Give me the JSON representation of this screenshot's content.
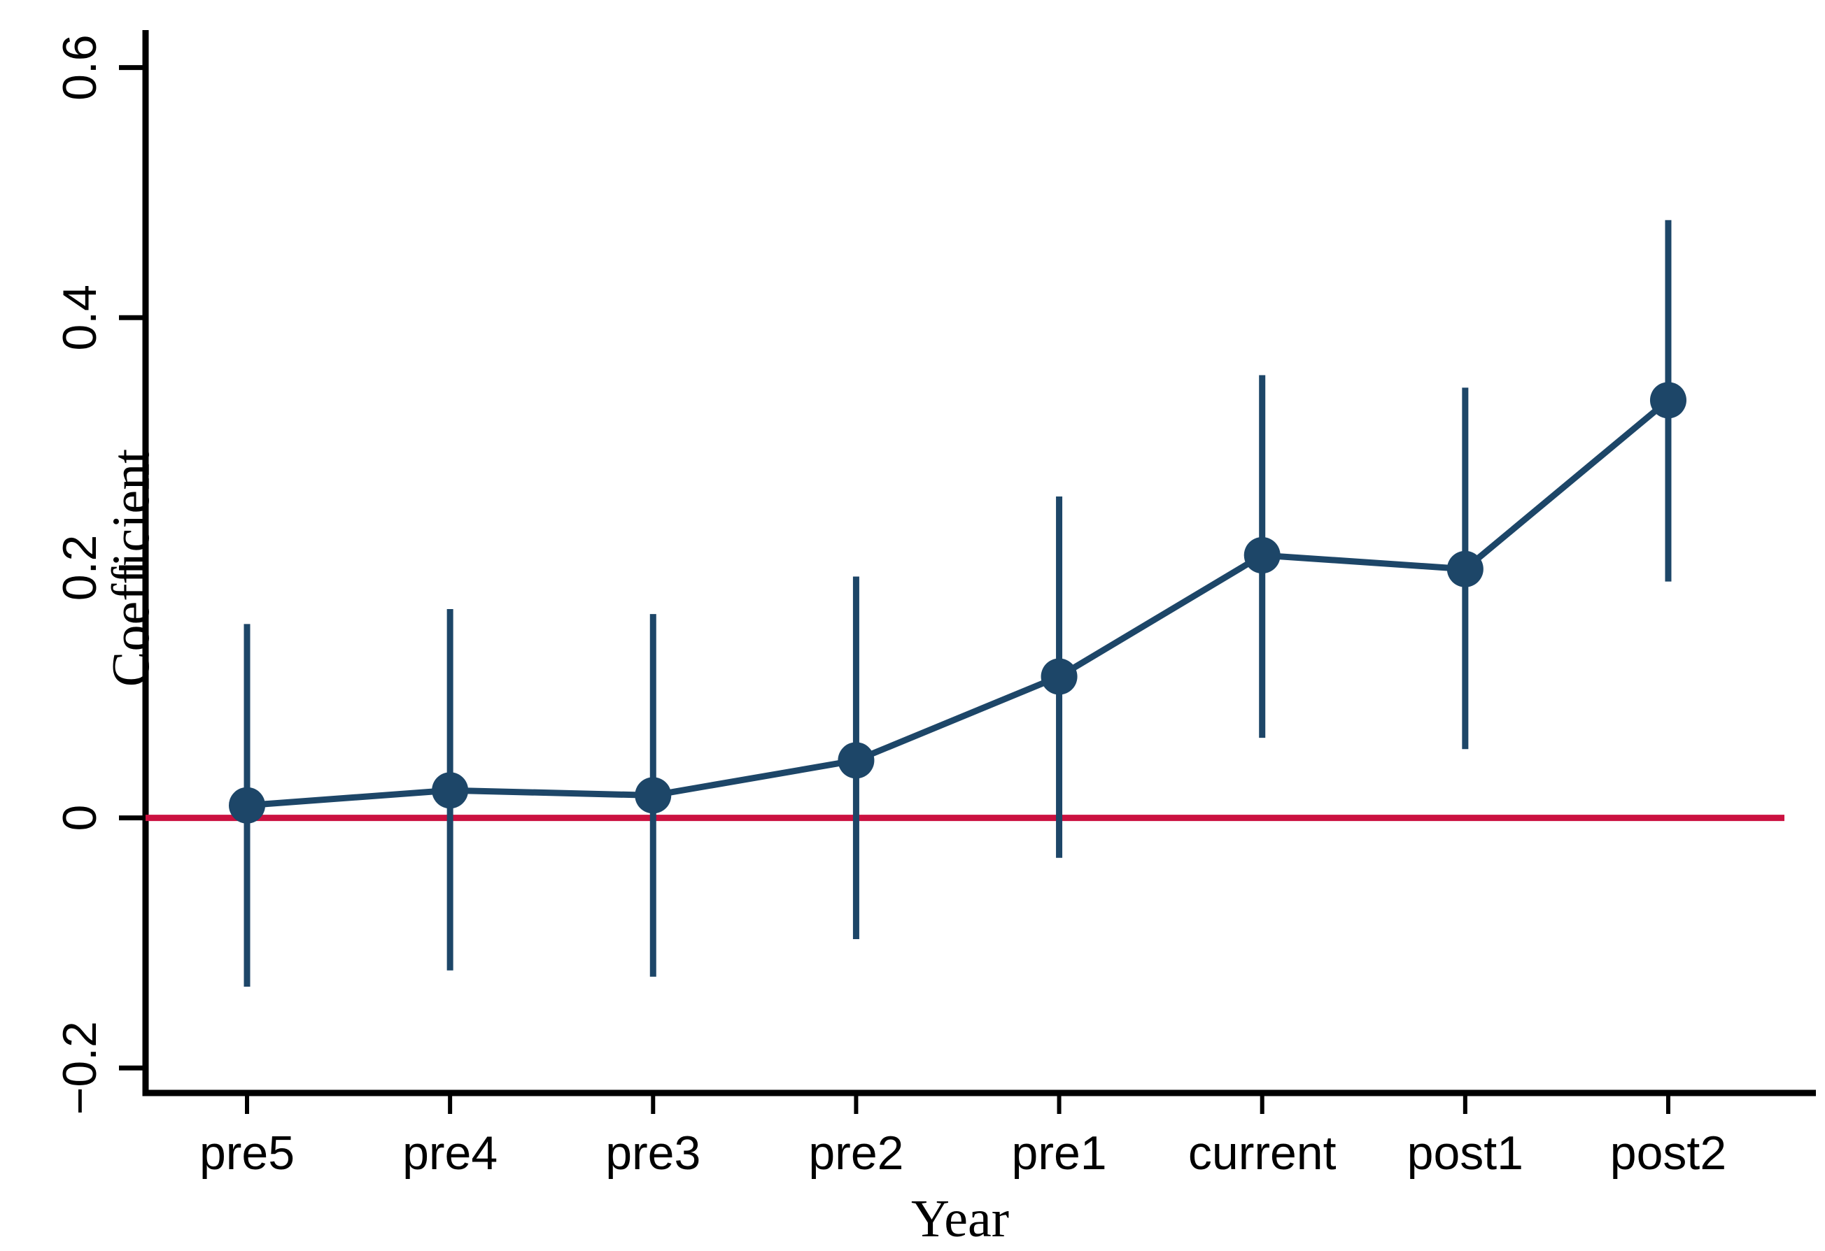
{
  "figure": {
    "background": "#ffffff"
  },
  "chart_data": {
    "type": "scatter",
    "subtype": "coefficient-errorbar-line",
    "title": "",
    "xlabel": "Year",
    "ylabel": "Coefficient",
    "categories": [
      "pre5",
      "pre4",
      "pre3",
      "pre2",
      "pre1",
      "current",
      "post1",
      "post2"
    ],
    "series": [
      {
        "name": "coefficient",
        "values": [
          0.01,
          0.022,
          0.018,
          0.046,
          0.113,
          0.21,
          0.199,
          0.334
        ],
        "ci_low": [
          -0.135,
          -0.122,
          -0.127,
          -0.097,
          -0.032,
          0.064,
          0.055,
          0.189
        ],
        "ci_high": [
          0.155,
          0.167,
          0.163,
          0.193,
          0.257,
          0.354,
          0.344,
          0.478
        ]
      }
    ],
    "yticks": {
      "values": [
        -0.2,
        0,
        0.2,
        0.4,
        0.6
      ],
      "labels": [
        "−0.2",
        "0",
        "0.2",
        "0.4",
        "0.6"
      ]
    },
    "ylim": [
      -0.22,
      0.63
    ],
    "zero_line": {
      "value": 0
    },
    "grid": false,
    "legend": false,
    "colors": {
      "marker": "#1d4668",
      "error_bar": "#1d4668",
      "connector_line": "#1d4668",
      "zero_line": "#cb1140",
      "axis": "#000000",
      "tick_label": "#000000"
    }
  }
}
